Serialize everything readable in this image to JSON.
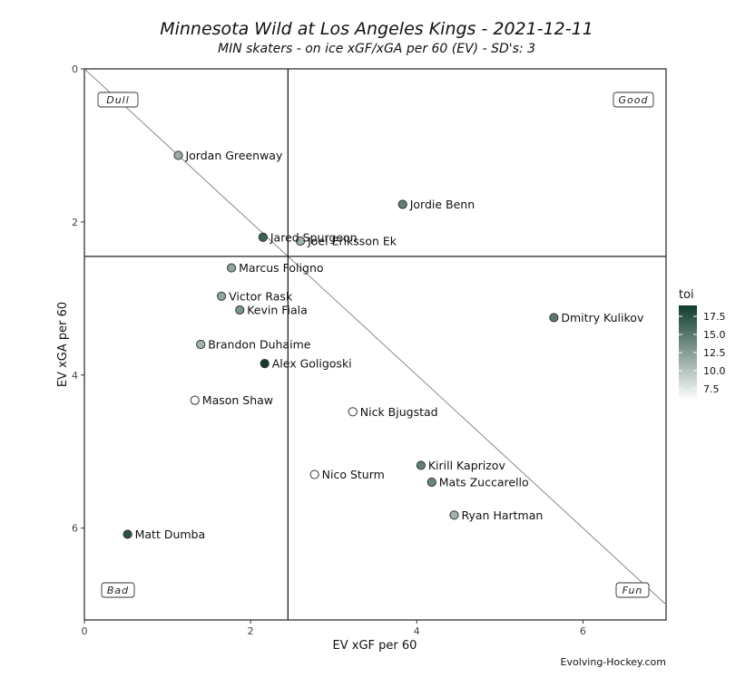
{
  "chart_data": {
    "type": "scatter",
    "title": "Minnesota Wild at Los Angeles Kings - 2021-12-11",
    "subtitle": "MIN skaters - on ice xGF/xGA per 60 (EV) - SD's: 3",
    "xlabel": "EV xGF per 60",
    "ylabel": "EV xGA per 60",
    "xlim": [
      0,
      7
    ],
    "ylim": [
      0,
      7.2
    ],
    "y_reversed": true,
    "xticks": [
      0,
      2,
      4,
      6
    ],
    "yticks": [
      0,
      2,
      4,
      6
    ],
    "x_reference": 2.45,
    "y_reference": 2.45,
    "diagonal": true,
    "quadrant_labels": {
      "top_left": "Dull",
      "top_right": "Good",
      "bottom_left": "Bad",
      "bottom_right": "Fun"
    },
    "legend": {
      "title": "toi",
      "ticks": [
        7.5,
        10.0,
        12.5,
        15.0,
        17.5
      ],
      "range": [
        6,
        19
      ],
      "color_low": "#ffffff",
      "color_high": "#0f3d2a"
    },
    "points": [
      {
        "name": "Jordan Greenway",
        "x": 1.13,
        "y": 1.13,
        "toi": 11.5
      },
      {
        "name": "Jordie Benn",
        "x": 3.83,
        "y": 1.77,
        "toi": 14.5
      },
      {
        "name": "Jared Spurgeon",
        "x": 2.15,
        "y": 2.2,
        "toi": 16.5
      },
      {
        "name": "Joel Eriksson Ek",
        "x": 2.6,
        "y": 2.25,
        "toi": 11.0
      },
      {
        "name": "Marcus Foligno",
        "x": 1.77,
        "y": 2.6,
        "toi": 12.0
      },
      {
        "name": "Victor Rask",
        "x": 1.65,
        "y": 2.97,
        "toi": 12.0
      },
      {
        "name": "Kevin Fiala",
        "x": 1.87,
        "y": 3.15,
        "toi": 13.0
      },
      {
        "name": "Dmitry Kulikov",
        "x": 5.65,
        "y": 3.25,
        "toi": 15.0
      },
      {
        "name": "Brandon Duhaime",
        "x": 1.4,
        "y": 3.6,
        "toi": 11.0
      },
      {
        "name": "Alex Goligoski",
        "x": 2.17,
        "y": 3.85,
        "toi": 19.0
      },
      {
        "name": "Mason Shaw",
        "x": 1.33,
        "y": 4.33,
        "toi": 6.0
      },
      {
        "name": "Nick Bjugstad",
        "x": 3.23,
        "y": 4.48,
        "toi": 6.0
      },
      {
        "name": "Kirill Kaprizov",
        "x": 4.05,
        "y": 5.18,
        "toi": 14.5
      },
      {
        "name": "Mats Zuccarello",
        "x": 4.18,
        "y": 5.4,
        "toi": 14.0
      },
      {
        "name": "Nico Sturm",
        "x": 2.77,
        "y": 5.3,
        "toi": 6.0
      },
      {
        "name": "Ryan Hartman",
        "x": 4.45,
        "y": 5.83,
        "toi": 11.0
      },
      {
        "name": "Matt Dumba",
        "x": 0.52,
        "y": 6.08,
        "toi": 17.5
      }
    ],
    "source_label": "Evolving-Hockey.com"
  }
}
